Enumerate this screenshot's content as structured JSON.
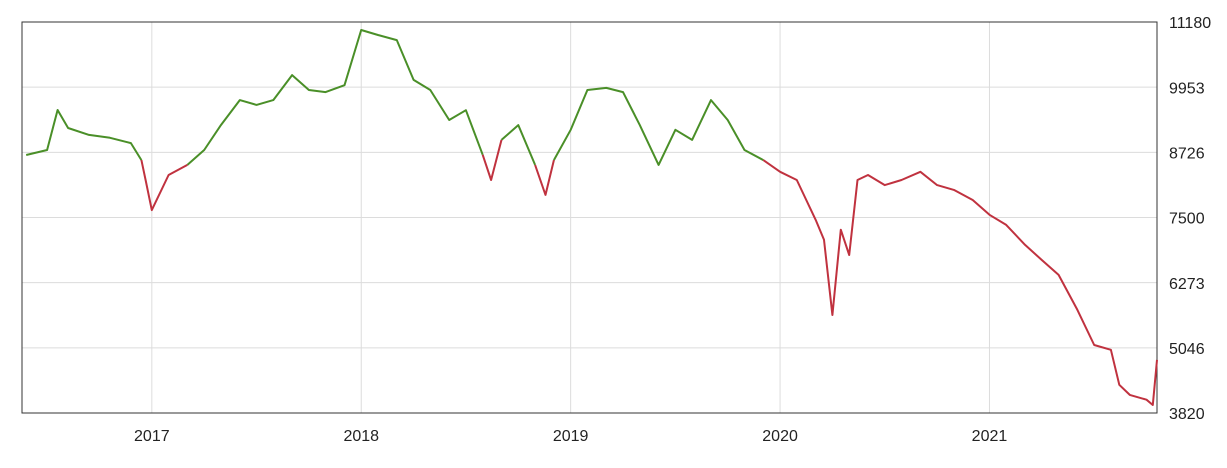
{
  "chart_data": {
    "type": "line",
    "x": [
      2016.4,
      2016.5,
      2016.55,
      2016.6,
      2016.7,
      2016.8,
      2016.9,
      2016.95,
      2016.97,
      2017.0,
      2017.08,
      2017.17,
      2017.25,
      2017.33,
      2017.42,
      2017.5,
      2017.58,
      2017.67,
      2017.75,
      2017.83,
      2017.92,
      2018.0,
      2018.08,
      2018.17,
      2018.25,
      2018.33,
      2018.42,
      2018.5,
      2018.58,
      2018.62,
      2018.67,
      2018.75,
      2018.83,
      2018.88,
      2018.92,
      2019.0,
      2019.08,
      2019.17,
      2019.25,
      2019.33,
      2019.42,
      2019.5,
      2019.58,
      2019.67,
      2019.75,
      2019.83,
      2019.92,
      2020.0,
      2020.08,
      2020.17,
      2020.21,
      2020.25,
      2020.29,
      2020.33,
      2020.37,
      2020.42,
      2020.5,
      2020.58,
      2020.67,
      2020.75,
      2020.83,
      2020.92,
      2021.0,
      2021.08,
      2021.17,
      2021.25,
      2021.33,
      2021.42,
      2021.5,
      2021.58,
      2021.62,
      2021.67,
      2021.75,
      2021.78,
      2021.8
    ],
    "series": [
      {
        "color": "#4a8f28",
        "values": [
          8677,
          8770,
          9524,
          9185,
          9055,
          9000,
          8900,
          8580,
          null,
          null,
          null,
          8490,
          8770,
          9240,
          9710,
          9620,
          9710,
          10180,
          9900,
          9860,
          9990,
          11030,
          10935,
          10840,
          10090,
          9900,
          9335,
          9520,
          8680,
          null,
          8960,
          9240,
          8490,
          null,
          8580,
          9150,
          9900,
          9940,
          9860,
          9240,
          8490,
          9150,
          8960,
          9710,
          9335,
          8770,
          8580,
          null,
          null,
          null,
          null,
          null,
          null,
          null,
          null,
          null,
          null,
          null,
          null,
          null,
          null,
          null,
          null,
          null,
          null,
          null,
          null,
          null,
          null,
          null,
          null,
          null,
          null,
          null,
          null
        ]
      },
      {
        "color": "#c0323f",
        "values": [
          null,
          null,
          null,
          null,
          null,
          null,
          null,
          8580,
          8206,
          7640,
          8300,
          8490,
          null,
          null,
          null,
          null,
          null,
          null,
          null,
          null,
          null,
          null,
          null,
          null,
          null,
          null,
          null,
          null,
          8680,
          8205,
          8960,
          null,
          8490,
          7925,
          8580,
          null,
          null,
          null,
          null,
          null,
          null,
          null,
          null,
          null,
          null,
          null,
          8580,
          8360,
          8205,
          7455,
          7080,
          5665,
          7270,
          6795,
          8205,
          8300,
          8110,
          8205,
          8360,
          8110,
          8020,
          7830,
          7550,
          7360,
          6985,
          6700,
          6420,
          5760,
          5100,
          5010,
          4350,
          4160,
          4070,
          3970,
          4820
        ]
      }
    ],
    "xlim": [
      2016.38,
      2021.8
    ],
    "xticks": [
      2017,
      2018,
      2019,
      2020,
      2021
    ],
    "ylim": [
      3820,
      11180
    ],
    "yticks": [
      3820,
      5046,
      6273,
      7500,
      8726,
      9953,
      11180
    ],
    "grid": true
  }
}
